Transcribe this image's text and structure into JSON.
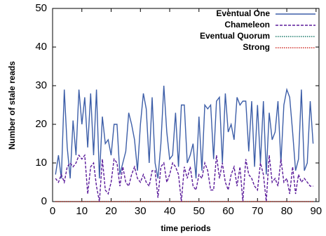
{
  "chart_data": {
    "type": "line",
    "xlabel": "time periods",
    "ylabel": "Number of stale reads",
    "xlim": [
      0,
      91
    ],
    "ylim": [
      0,
      50
    ],
    "xticks": [
      0,
      10,
      20,
      30,
      40,
      50,
      60,
      70,
      80,
      90
    ],
    "yticks": [
      0,
      10,
      20,
      30,
      40,
      50
    ],
    "legend": "top-right",
    "x": [
      1,
      2,
      3,
      4,
      5,
      6,
      7,
      8,
      9,
      10,
      11,
      12,
      13,
      14,
      15,
      16,
      17,
      18,
      19,
      20,
      21,
      22,
      23,
      24,
      25,
      26,
      27,
      28,
      29,
      30,
      31,
      32,
      33,
      34,
      35,
      36,
      37,
      38,
      39,
      40,
      41,
      42,
      43,
      44,
      45,
      46,
      47,
      48,
      49,
      50,
      51,
      52,
      53,
      54,
      55,
      56,
      57,
      58,
      59,
      60,
      61,
      62,
      63,
      64,
      65,
      66,
      67,
      68,
      69,
      70,
      71,
      72,
      73,
      74,
      75,
      76,
      77,
      78,
      79,
      80,
      81,
      82,
      83,
      84,
      85,
      86,
      87,
      88,
      89
    ],
    "series": [
      {
        "name": "Eventual One",
        "color": "#3d5ea8",
        "style": "solid",
        "values": [
          7,
          12,
          6,
          29,
          14,
          6,
          21,
          12,
          29,
          20,
          27,
          14,
          28,
          12,
          29,
          6,
          22,
          15,
          16,
          12,
          20,
          20,
          7,
          10,
          13,
          23,
          20,
          16,
          8,
          20,
          28,
          24,
          10,
          27,
          10,
          6,
          15,
          30,
          18,
          11,
          12,
          23,
          9,
          25,
          25,
          10,
          12,
          15,
          6,
          22,
          8,
          25,
          24,
          25,
          11,
          26,
          27,
          10,
          28,
          18,
          20,
          16,
          27,
          25,
          26,
          26,
          13,
          26,
          9,
          25,
          10,
          26,
          7,
          23,
          16,
          18,
          26,
          10,
          25,
          29,
          27,
          18,
          8,
          11,
          29,
          8,
          10,
          26,
          15
        ]
      },
      {
        "name": "Chameleon",
        "color": "#5a1a9a",
        "style": "dashed",
        "values": [
          6,
          5,
          7,
          5,
          9,
          10,
          9,
          10,
          12,
          11,
          12,
          2,
          9,
          10,
          4,
          0,
          11,
          3,
          2,
          5,
          11,
          10,
          4,
          9,
          5,
          4,
          7,
          9,
          6,
          5,
          7,
          5,
          4,
          8,
          8,
          1,
          9,
          10,
          5,
          7,
          10,
          9,
          7,
          0,
          9,
          6,
          9,
          4,
          3,
          7,
          6,
          10,
          8,
          3,
          3,
          12,
          6,
          10,
          5,
          3,
          7,
          9,
          4,
          9,
          0,
          11,
          7,
          6,
          4,
          3,
          10,
          7,
          0,
          12,
          5,
          6,
          4,
          11,
          5,
          6,
          2,
          9,
          2,
          7,
          5,
          6,
          5,
          4,
          4
        ]
      },
      {
        "name": "Eventual Quorum",
        "color": "#1a7a6a",
        "style": "dotted",
        "values": [
          0,
          0,
          0,
          0,
          0,
          0,
          0,
          0,
          0,
          0,
          0,
          0,
          0,
          0,
          0,
          0,
          0,
          0,
          0,
          0,
          0,
          0,
          0,
          0,
          0,
          0,
          0,
          0,
          0,
          0,
          0,
          0,
          0,
          0,
          0,
          0,
          0,
          0,
          0,
          0,
          0,
          0,
          0,
          0,
          0,
          0,
          0,
          0,
          0,
          0,
          0,
          0,
          0,
          0,
          0,
          0,
          0,
          0,
          0,
          0,
          0,
          0,
          0,
          0,
          0,
          0,
          0,
          0,
          0,
          0,
          0,
          0,
          0,
          0,
          0,
          0,
          0,
          0,
          0,
          0,
          0,
          0,
          0,
          0,
          0,
          0,
          0,
          0,
          0
        ]
      },
      {
        "name": "Strong",
        "color": "#d0302a",
        "style": "dotted",
        "values": [
          0,
          0,
          0,
          0,
          0,
          0,
          0,
          0,
          0,
          0,
          0,
          0,
          0,
          0,
          0,
          0,
          0,
          0,
          0,
          0,
          0,
          0,
          0,
          0,
          0,
          0,
          0,
          0,
          0,
          0,
          0,
          0,
          0,
          0,
          0,
          0,
          0,
          0,
          0,
          0,
          0,
          0,
          0,
          0,
          0,
          0,
          0,
          0,
          0,
          0,
          0,
          0,
          0,
          0,
          0,
          0,
          0,
          0,
          0,
          0,
          0,
          0,
          0,
          0,
          0,
          0,
          0,
          0,
          0,
          0,
          0,
          0,
          0,
          0,
          0,
          0,
          0,
          0,
          0,
          0,
          0,
          0,
          0,
          0,
          0,
          0,
          0,
          0,
          0
        ]
      }
    ]
  }
}
